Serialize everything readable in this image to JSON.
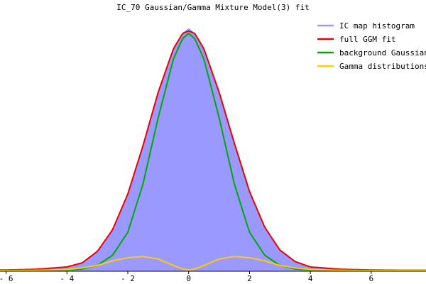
{
  "chart_data": {
    "type": "area",
    "title": "IC_70 Gaussian/Gamma Mixture Model(3) fit",
    "xlabel": "",
    "ylabel": "",
    "xlim": [
      -6.2,
      7.8
    ],
    "ylim": [
      0,
      1.0
    ],
    "x_ticks": [
      -6,
      -4,
      -2,
      0,
      2,
      4,
      6
    ],
    "x_tick_labels": [
      "- 6",
      "- 4",
      "- 2",
      "0",
      "2",
      "4",
      "6"
    ],
    "grid": false,
    "legend_position": "top-right",
    "series": [
      {
        "name": "IC map histogram",
        "kind": "histogram",
        "color": "#9999ff",
        "x": [
          -6.0,
          -5.0,
          -4.0,
          -3.5,
          -3.0,
          -2.5,
          -2.0,
          -1.5,
          -1.0,
          -0.5,
          -0.2,
          0.0,
          0.2,
          0.5,
          1.0,
          1.5,
          2.0,
          2.5,
          3.0,
          3.5,
          4.0,
          5.0,
          6.0,
          7.0
        ],
        "values": [
          0.003,
          0.006,
          0.014,
          0.03,
          0.075,
          0.16,
          0.3,
          0.49,
          0.7,
          0.87,
          0.93,
          0.95,
          0.93,
          0.87,
          0.7,
          0.5,
          0.31,
          0.17,
          0.08,
          0.035,
          0.014,
          0.005,
          0.002,
          0.001
        ]
      },
      {
        "name": "full GGM fit",
        "kind": "line",
        "color": "#ee0000",
        "x": [
          -6.0,
          -5.0,
          -4.0,
          -3.5,
          -3.0,
          -2.5,
          -2.0,
          -1.5,
          -1.0,
          -0.5,
          -0.2,
          0.0,
          0.2,
          0.5,
          1.0,
          1.5,
          2.0,
          2.5,
          3.0,
          3.5,
          4.0,
          5.0,
          6.0,
          7.0
        ],
        "values": [
          0.002,
          0.005,
          0.014,
          0.03,
          0.075,
          0.16,
          0.3,
          0.49,
          0.7,
          0.87,
          0.93,
          0.94,
          0.93,
          0.87,
          0.7,
          0.5,
          0.31,
          0.17,
          0.08,
          0.035,
          0.014,
          0.005,
          0.002,
          0.001
        ]
      },
      {
        "name": "background Gaussian",
        "kind": "line",
        "color": "#00aa00",
        "x": [
          -6.0,
          -5.0,
          -4.0,
          -3.5,
          -3.0,
          -2.5,
          -2.0,
          -1.5,
          -1.0,
          -0.5,
          -0.2,
          0.0,
          0.2,
          0.5,
          1.0,
          1.5,
          2.0,
          2.5,
          3.0,
          3.5,
          4.0,
          5.0,
          6.0,
          7.0
        ],
        "values": [
          0.0,
          0.0,
          0.002,
          0.006,
          0.02,
          0.06,
          0.15,
          0.34,
          0.6,
          0.83,
          0.91,
          0.93,
          0.91,
          0.83,
          0.6,
          0.34,
          0.15,
          0.06,
          0.02,
          0.006,
          0.002,
          0.0,
          0.0,
          0.0
        ]
      },
      {
        "name": "Gamma distributions",
        "kind": "line",
        "color": "#ffcc00",
        "x": [
          -6.0,
          -5.0,
          -4.0,
          -3.5,
          -3.0,
          -2.5,
          -2.0,
          -1.5,
          -1.0,
          -0.5,
          -0.2,
          0.0,
          0.2,
          0.5,
          1.0,
          1.5,
          2.0,
          2.5,
          3.0,
          3.5,
          4.0,
          5.0,
          6.0,
          7.0
        ],
        "values": [
          0.0,
          0.001,
          0.004,
          0.01,
          0.02,
          0.038,
          0.05,
          0.055,
          0.045,
          0.02,
          0.006,
          0.002,
          0.006,
          0.02,
          0.045,
          0.055,
          0.05,
          0.038,
          0.02,
          0.01,
          0.004,
          0.001,
          0.0,
          0.0
        ]
      }
    ]
  }
}
